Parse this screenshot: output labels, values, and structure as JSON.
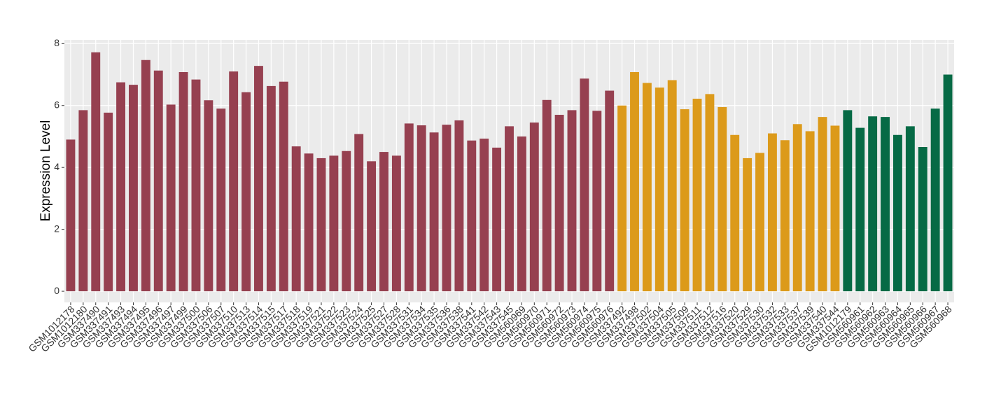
{
  "chart_data": {
    "type": "bar",
    "y_label": "Expression Level",
    "categories": [
      "GSM1012178",
      "GSM1012180",
      "GSM337490",
      "GSM337491",
      "GSM337493",
      "GSM337494",
      "GSM337495",
      "GSM337496",
      "GSM337497",
      "GSM337499",
      "GSM337500",
      "GSM337506",
      "GSM337507",
      "GSM337510",
      "GSM337513",
      "GSM337514",
      "GSM337515",
      "GSM337517",
      "GSM337518",
      "GSM337519",
      "GSM337521",
      "GSM337522",
      "GSM337523",
      "GSM337524",
      "GSM337525",
      "GSM337527",
      "GSM337528",
      "GSM337531",
      "GSM337534",
      "GSM337535",
      "GSM337536",
      "GSM337538",
      "GSM337541",
      "GSM337542",
      "GSM337543",
      "GSM337545",
      "GSM560969",
      "GSM560970",
      "GSM560971",
      "GSM560972",
      "GSM560973",
      "GSM560974",
      "GSM560975",
      "GSM560976",
      "GSM337492",
      "GSM337498",
      "GSM337502",
      "GSM337504",
      "GSM337505",
      "GSM337509",
      "GSM337511",
      "GSM337512",
      "GSM337516",
      "GSM337520",
      "GSM337529",
      "GSM337530",
      "GSM337532",
      "GSM337533",
      "GSM337537",
      "GSM337539",
      "GSM337540",
      "GSM337544",
      "GSM1012179",
      "GSM560961",
      "GSM560962",
      "GSM560963",
      "GSM560964",
      "GSM560965",
      "GSM560966",
      "GSM560967",
      "GSM560968"
    ],
    "values": [
      4.9,
      5.85,
      7.72,
      5.77,
      6.75,
      6.67,
      7.47,
      7.13,
      6.03,
      7.08,
      6.84,
      6.17,
      5.9,
      7.1,
      6.43,
      7.28,
      6.63,
      6.77,
      4.68,
      4.45,
      4.3,
      4.38,
      4.53,
      5.08,
      4.2,
      4.5,
      4.38,
      5.42,
      5.36,
      5.13,
      5.38,
      5.52,
      4.87,
      4.93,
      4.64,
      5.33,
      5.0,
      5.45,
      6.18,
      5.7,
      5.85,
      6.87,
      5.83,
      6.48,
      6.0,
      7.08,
      6.73,
      6.58,
      6.82,
      5.88,
      6.22,
      6.37,
      5.95,
      5.05,
      4.3,
      4.47,
      5.1,
      4.88,
      5.4,
      5.17,
      5.63,
      5.35,
      5.85,
      5.28,
      5.65,
      5.63,
      5.05,
      5.33,
      4.66,
      5.9,
      7.0
    ],
    "colors": [
      "#964050",
      "#964050",
      "#964050",
      "#964050",
      "#964050",
      "#964050",
      "#964050",
      "#964050",
      "#964050",
      "#964050",
      "#964050",
      "#964050",
      "#964050",
      "#964050",
      "#964050",
      "#964050",
      "#964050",
      "#964050",
      "#964050",
      "#964050",
      "#964050",
      "#964050",
      "#964050",
      "#964050",
      "#964050",
      "#964050",
      "#964050",
      "#964050",
      "#964050",
      "#964050",
      "#964050",
      "#964050",
      "#964050",
      "#964050",
      "#964050",
      "#964050",
      "#964050",
      "#964050",
      "#964050",
      "#964050",
      "#964050",
      "#964050",
      "#964050",
      "#964050",
      "#dc9a1a",
      "#dc9a1a",
      "#dc9a1a",
      "#dc9a1a",
      "#dc9a1a",
      "#dc9a1a",
      "#dc9a1a",
      "#dc9a1a",
      "#dc9a1a",
      "#dc9a1a",
      "#dc9a1a",
      "#dc9a1a",
      "#dc9a1a",
      "#dc9a1a",
      "#dc9a1a",
      "#dc9a1a",
      "#dc9a1a",
      "#dc9a1a",
      "#066a45",
      "#066a45",
      "#066a45",
      "#066a45",
      "#066a45",
      "#066a45",
      "#066a45",
      "#066a45",
      "#066a45"
    ],
    "ylim": [
      -0.36,
      8.12
    ],
    "yticks": [
      0,
      2,
      4,
      6,
      8
    ],
    "grid": true
  }
}
